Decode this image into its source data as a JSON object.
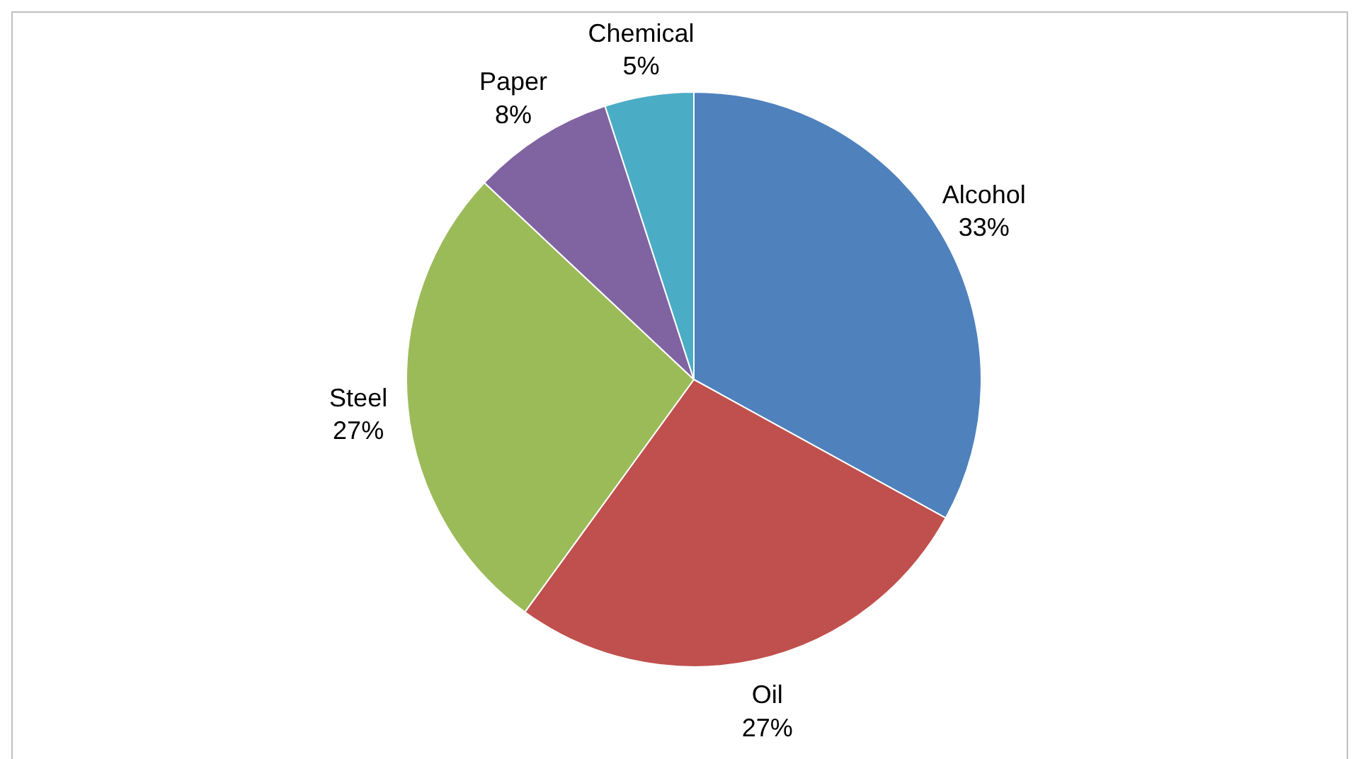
{
  "chart_data": {
    "type": "pie",
    "categories": [
      "Alcohol",
      "Oil",
      "Steel",
      "Paper",
      "Chemical"
    ],
    "values": [
      33,
      27,
      27,
      8,
      5
    ],
    "value_labels": [
      "33%",
      "27%",
      "27%",
      "8%",
      "5%"
    ],
    "colors": [
      "#4f81bd",
      "#c0504d",
      "#9bbb59",
      "#8064a2",
      "#4bacc6"
    ],
    "legend": false
  }
}
